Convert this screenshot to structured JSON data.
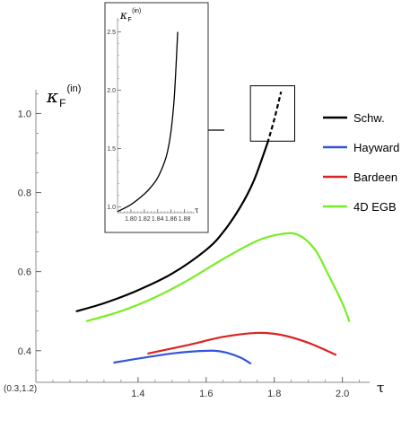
{
  "chart_data": {
    "type": "line",
    "main": {
      "xlabel": "τ",
      "ylabel": {
        "base": "κ",
        "sub": "F",
        "sup": "(in)"
      },
      "origin_label": "(0.3,1.2)",
      "xlim": [
        1.1,
        2.08
      ],
      "ylim": [
        0.32,
        1.06
      ],
      "xticks": [
        {
          "value": 1.4,
          "label": "1.4"
        },
        {
          "value": 1.6,
          "label": "1.6"
        },
        {
          "value": 1.8,
          "label": "1.8"
        },
        {
          "value": 2.0,
          "label": "2.0"
        }
      ],
      "yticks": [
        {
          "value": 0.4,
          "label": "0.4"
        },
        {
          "value": 0.6,
          "label": "0.6"
        },
        {
          "value": 0.8,
          "label": "0.8"
        },
        {
          "value": 1.0,
          "label": "1.0"
        }
      ],
      "series": [
        {
          "name": "Schw.",
          "color": "#000000",
          "x": [
            1.22,
            1.3,
            1.4,
            1.5,
            1.6,
            1.65,
            1.7,
            1.74,
            1.78,
            1.8,
            1.82
          ],
          "y": [
            0.5,
            0.52,
            0.553,
            0.595,
            0.655,
            0.7,
            0.763,
            0.83,
            0.925,
            0.985,
            1.055
          ],
          "dashed_from_x": 1.78
        },
        {
          "name": "Hayward",
          "color": "#3355dd",
          "x": [
            1.33,
            1.4,
            1.5,
            1.56,
            1.62,
            1.66,
            1.7,
            1.73
          ],
          "y": [
            0.37,
            0.38,
            0.393,
            0.398,
            0.4,
            0.395,
            0.383,
            0.368
          ]
        },
        {
          "name": "Bardeen",
          "color": "#dd2222",
          "x": [
            1.43,
            1.55,
            1.65,
            1.75,
            1.82,
            1.9,
            1.98
          ],
          "y": [
            0.393,
            0.415,
            0.435,
            0.445,
            0.44,
            0.42,
            0.39
          ]
        },
        {
          "name": "4D EGB",
          "color": "#77ee22",
          "x": [
            1.25,
            1.35,
            1.45,
            1.55,
            1.65,
            1.75,
            1.82,
            1.87,
            1.92,
            1.96,
            2.0,
            2.02
          ],
          "y": [
            0.475,
            0.5,
            0.535,
            0.58,
            0.632,
            0.678,
            0.695,
            0.693,
            0.655,
            0.59,
            0.52,
            0.475
          ]
        }
      ],
      "zoom_box": {
        "x": [
          1.73,
          1.86
        ],
        "y": [
          0.93,
          1.07
        ]
      },
      "legend_position": "right"
    },
    "inset": {
      "xlabel": "τ",
      "ylabel": {
        "base": "κ",
        "sub": "F",
        "sup": "(in)"
      },
      "xlim": [
        1.78,
        1.89
      ],
      "ylim": [
        0.95,
        2.62
      ],
      "xticks": [
        {
          "value": 1.8,
          "label": "1.80"
        },
        {
          "value": 1.82,
          "label": "1.82"
        },
        {
          "value": 1.84,
          "label": "1.84"
        },
        {
          "value": 1.86,
          "label": "1.86"
        },
        {
          "value": 1.88,
          "label": "1.88"
        }
      ],
      "yticks": [
        {
          "value": 1.0,
          "label": "1.0"
        },
        {
          "value": 1.5,
          "label": "1.5"
        },
        {
          "value": 2.0,
          "label": "2.0"
        },
        {
          "value": 2.5,
          "label": "2.5"
        }
      ],
      "series": [
        {
          "name": "Schw.",
          "color": "#000000",
          "x": [
            1.78,
            1.8,
            1.82,
            1.83,
            1.84,
            1.85,
            1.855,
            1.86,
            1.865,
            1.87
          ],
          "y": [
            0.96,
            1.02,
            1.11,
            1.17,
            1.25,
            1.38,
            1.48,
            1.65,
            1.95,
            2.5
          ]
        }
      ]
    }
  }
}
